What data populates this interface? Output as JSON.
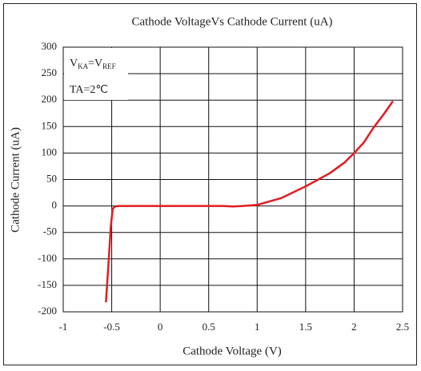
{
  "chart_data": {
    "type": "line",
    "title": "Cathode VoltageVs Cathode Current (uA)",
    "x_label": "Cathode Voltage (V)",
    "y_label": "Cathode Current (uA)",
    "legend_text": {
      "v1": "V",
      "sub1": "KA",
      "v2": "=V",
      "sub2": "REF"
    },
    "annotation": "TA=2℃",
    "xlim": [
      -1,
      2.5
    ],
    "xticks": [
      -1,
      -0.5,
      0,
      0.5,
      1,
      1.5,
      2,
      2.5
    ],
    "ylim": [
      -200,
      300
    ],
    "yticks": [
      300,
      250,
      200,
      150,
      100,
      50,
      0,
      -50,
      -100,
      -150,
      -200
    ],
    "grid": true,
    "series": [
      {
        "color": "#e31b23",
        "x": [
          -0.56,
          -0.53,
          -0.51,
          -0.49,
          -0.46,
          -0.4,
          0,
          0.5,
          0.65,
          0.75,
          0.85,
          1,
          1.25,
          1.5,
          1.75,
          1.9,
          2,
          2.1,
          2.2,
          2.3,
          2.4
        ],
        "values": [
          -182,
          -100,
          -40,
          -5,
          -0.5,
          0,
          0,
          0,
          0,
          -1,
          0,
          2,
          15,
          37,
          62,
          82,
          100,
          120,
          148,
          172,
          198
        ]
      }
    ]
  }
}
